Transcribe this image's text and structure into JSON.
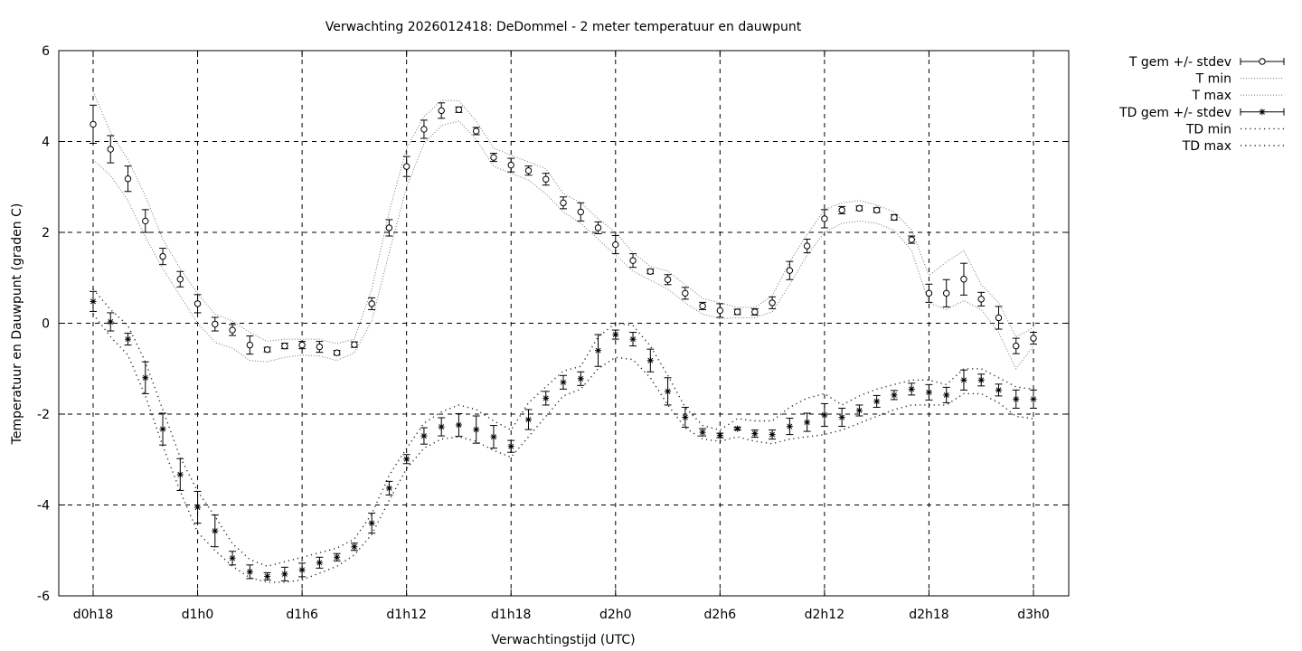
{
  "chart_data": {
    "type": "line",
    "title": "Verwachting 2026012418: DeDommel - 2 meter temperatuur en dauwpunt",
    "xlabel": "Verwachtingstijd (UTC)",
    "ylabel": "Temperatuur en Dauwpunt (graden C)",
    "x_unit": "hours from forecast start (d0h18)",
    "xlim": [
      18,
      72
    ],
    "ylim": [
      -6,
      6
    ],
    "x_ticks": [
      {
        "x": 18,
        "label": "d0h18"
      },
      {
        "x": 24,
        "label": "d1h0"
      },
      {
        "x": 30,
        "label": "d1h6"
      },
      {
        "x": 36,
        "label": "d1h12"
      },
      {
        "x": 42,
        "label": "d1h18"
      },
      {
        "x": 48,
        "label": "d2h0"
      },
      {
        "x": 54,
        "label": "d2h6"
      },
      {
        "x": 60,
        "label": "d2h12"
      },
      {
        "x": 66,
        "label": "d2h18"
      },
      {
        "x": 72,
        "label": "d3h0"
      }
    ],
    "y_ticks": [
      {
        "y": -6,
        "label": "-6"
      },
      {
        "y": -4,
        "label": "-4"
      },
      {
        "y": -2,
        "label": "-2"
      },
      {
        "y": 0,
        "label": "0"
      },
      {
        "y": 2,
        "label": "2"
      },
      {
        "y": 4,
        "label": "4"
      },
      {
        "y": 6,
        "label": "6"
      }
    ],
    "grid": true,
    "legend_position": "right",
    "x": [
      18,
      19,
      20,
      21,
      22,
      23,
      24,
      25,
      26,
      27,
      28,
      29,
      30,
      31,
      32,
      33,
      34,
      35,
      36,
      37,
      38,
      39,
      40,
      41,
      42,
      43,
      44,
      45,
      46,
      47,
      48,
      49,
      50,
      51,
      52,
      53,
      54,
      55,
      56,
      57,
      58,
      59,
      60,
      61,
      62,
      63,
      64,
      65,
      66,
      67,
      68,
      69,
      70,
      71,
      72
    ],
    "series": [
      {
        "name": "T gem +/- stdev",
        "marker": "circle",
        "values": [
          4.38,
          3.83,
          3.18,
          2.25,
          1.47,
          0.97,
          0.43,
          -0.02,
          -0.15,
          -0.48,
          -0.58,
          -0.5,
          -0.48,
          -0.52,
          -0.65,
          -0.47,
          0.43,
          2.1,
          3.45,
          4.27,
          4.68,
          4.7,
          4.23,
          3.65,
          3.48,
          3.36,
          3.17,
          2.65,
          2.45,
          2.1,
          1.73,
          1.38,
          1.14,
          0.96,
          0.66,
          0.38,
          0.28,
          0.25,
          0.25,
          0.45,
          1.16,
          1.7,
          2.3,
          2.49,
          2.53,
          2.49,
          2.33,
          1.84,
          0.66,
          0.66,
          0.97,
          0.53,
          0.12,
          -0.5,
          -0.33
        ],
        "stdev": [
          0.42,
          0.3,
          0.28,
          0.25,
          0.18,
          0.17,
          0.2,
          0.15,
          0.12,
          0.2,
          0.05,
          0.06,
          0.08,
          0.12,
          0.05,
          0.06,
          0.13,
          0.18,
          0.22,
          0.2,
          0.17,
          0.06,
          0.08,
          0.09,
          0.15,
          0.1,
          0.13,
          0.13,
          0.2,
          0.13,
          0.2,
          0.15,
          0.05,
          0.11,
          0.13,
          0.08,
          0.15,
          0.06,
          0.07,
          0.13,
          0.2,
          0.15,
          0.2,
          0.08,
          0.05,
          0.05,
          0.06,
          0.08,
          0.2,
          0.3,
          0.35,
          0.15,
          0.25,
          0.17,
          0.13
        ]
      },
      {
        "name": "T min",
        "values": [
          3.6,
          3.25,
          2.7,
          1.9,
          1.2,
          0.6,
          0.0,
          -0.42,
          -0.55,
          -0.82,
          -0.85,
          -0.75,
          -0.7,
          -0.72,
          -0.82,
          -0.65,
          0.05,
          1.55,
          3.0,
          3.95,
          4.35,
          4.45,
          4.05,
          3.45,
          3.3,
          3.15,
          2.85,
          2.45,
          2.2,
          1.85,
          1.5,
          1.15,
          0.95,
          0.75,
          0.45,
          0.2,
          0.1,
          0.12,
          0.12,
          0.25,
          0.85,
          1.5,
          2.0,
          2.2,
          2.25,
          2.2,
          2.05,
          1.6,
          0.45,
          0.3,
          0.5,
          0.3,
          -0.2,
          -1.0,
          -0.5
        ]
      },
      {
        "name": "T max",
        "values": [
          5.1,
          4.2,
          3.6,
          2.8,
          1.85,
          1.2,
          0.65,
          0.2,
          0.05,
          -0.2,
          -0.4,
          -0.35,
          -0.35,
          -0.35,
          -0.45,
          -0.35,
          0.75,
          2.45,
          3.85,
          4.55,
          4.9,
          4.9,
          4.45,
          3.85,
          3.7,
          3.55,
          3.4,
          2.85,
          2.65,
          2.3,
          2.0,
          1.55,
          1.25,
          1.15,
          0.85,
          0.55,
          0.45,
          0.35,
          0.35,
          0.6,
          1.35,
          1.95,
          2.5,
          2.65,
          2.7,
          2.6,
          2.45,
          2.05,
          1.05,
          1.35,
          1.6,
          0.85,
          0.45,
          -0.3,
          -0.1
        ]
      },
      {
        "name": "TD gem +/- stdev",
        "marker": "star",
        "values": [
          0.48,
          0.03,
          -0.35,
          -1.2,
          -2.33,
          -3.33,
          -4.05,
          -4.57,
          -5.17,
          -5.47,
          -5.57,
          -5.52,
          -5.43,
          -5.27,
          -5.15,
          -4.92,
          -4.4,
          -3.63,
          -2.99,
          -2.48,
          -2.28,
          -2.24,
          -2.34,
          -2.5,
          -2.71,
          -2.12,
          -1.65,
          -1.3,
          -1.22,
          -0.6,
          -0.25,
          -0.35,
          -0.82,
          -1.5,
          -2.07,
          -2.4,
          -2.47,
          -2.32,
          -2.43,
          -2.45,
          -2.27,
          -2.18,
          -2.02,
          -2.07,
          -1.92,
          -1.72,
          -1.58,
          -1.45,
          -1.52,
          -1.58,
          -1.25,
          -1.25,
          -1.47,
          -1.67,
          -1.67
        ]
      },
      {
        "name": "TD min",
        "values": [
          0.2,
          -0.3,
          -0.7,
          -1.6,
          -2.7,
          -3.7,
          -4.6,
          -5.0,
          -5.35,
          -5.6,
          -5.7,
          -5.7,
          -5.65,
          -5.5,
          -5.35,
          -5.1,
          -4.65,
          -3.9,
          -3.2,
          -2.75,
          -2.55,
          -2.5,
          -2.6,
          -2.8,
          -2.95,
          -2.5,
          -2.05,
          -1.6,
          -1.45,
          -1.0,
          -0.75,
          -0.8,
          -1.2,
          -1.8,
          -2.3,
          -2.55,
          -2.6,
          -2.5,
          -2.6,
          -2.65,
          -2.55,
          -2.5,
          -2.45,
          -2.35,
          -2.2,
          -2.05,
          -1.9,
          -1.8,
          -1.8,
          -1.8,
          -1.55,
          -1.55,
          -1.75,
          -2.05,
          -2.1
        ]
      },
      {
        "name": "TD max",
        "values": [
          0.75,
          0.3,
          -0.05,
          -0.85,
          -1.9,
          -2.95,
          -3.7,
          -4.25,
          -4.85,
          -5.2,
          -5.35,
          -5.25,
          -5.15,
          -5.05,
          -4.95,
          -4.75,
          -4.2,
          -3.35,
          -2.75,
          -2.2,
          -1.95,
          -1.8,
          -1.9,
          -2.15,
          -2.35,
          -1.75,
          -1.4,
          -1.05,
          -0.95,
          -0.3,
          0.0,
          -0.05,
          -0.5,
          -1.15,
          -1.85,
          -2.25,
          -2.35,
          -2.1,
          -2.15,
          -2.15,
          -1.85,
          -1.65,
          -1.55,
          -1.8,
          -1.6,
          -1.45,
          -1.35,
          -1.25,
          -1.25,
          -1.35,
          -1.0,
          -1.0,
          -1.2,
          -1.4,
          -1.45
        ]
      }
    ]
  }
}
